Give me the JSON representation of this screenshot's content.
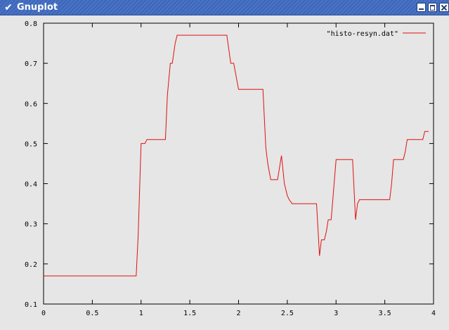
{
  "window": {
    "title": "Gnuplot",
    "menu_icon": "chevron-down-icon",
    "minimize_icon": "minimize-icon",
    "maximize_icon": "maximize-icon",
    "close_icon": "close-icon",
    "titlebar_color": "#4a74c6"
  },
  "chart_data": {
    "type": "line",
    "title": "",
    "xlabel": "",
    "ylabel": "",
    "xlim": [
      0,
      4
    ],
    "ylim": [
      0.1,
      0.8
    ],
    "x_ticks": [
      0,
      0.5,
      1,
      1.5,
      2,
      2.5,
      3,
      3.5,
      4
    ],
    "x_tick_labels": [
      "0",
      "0.5",
      "1",
      "1.5",
      "2",
      "2.5",
      "3",
      "3.5",
      "4"
    ],
    "y_ticks": [
      0.1,
      0.2,
      0.3,
      0.4,
      0.5,
      0.6,
      0.7,
      0.8
    ],
    "y_tick_labels": [
      "0.1",
      "0.2",
      "0.3",
      "0.4",
      "0.5",
      "0.6",
      "0.7",
      "0.8"
    ],
    "grid": false,
    "legend_position": "top-right",
    "background": "#e6e6e6",
    "series": [
      {
        "name": "\"histo-resyn.dat\"",
        "color": "#e01010",
        "x": [
          0,
          0.95,
          0.97,
          1.0,
          1.04,
          1.06,
          1.25,
          1.27,
          1.3,
          1.32,
          1.35,
          1.37,
          1.88,
          1.92,
          1.95,
          2.0,
          2.25,
          2.28,
          2.3,
          2.33,
          2.4,
          2.42,
          2.44,
          2.47,
          2.5,
          2.52,
          2.55,
          2.8,
          2.83,
          2.85,
          2.88,
          2.9,
          2.92,
          2.95,
          2.97,
          3.0,
          3.17,
          3.2,
          3.22,
          3.24,
          3.27,
          3.55,
          3.57,
          3.59,
          3.69,
          3.71,
          3.73,
          3.86,
          3.89,
          3.91,
          3.95
        ],
        "y": [
          0.17,
          0.17,
          0.27,
          0.5,
          0.5,
          0.51,
          0.51,
          0.62,
          0.7,
          0.7,
          0.75,
          0.77,
          0.77,
          0.7,
          0.7,
          0.635,
          0.635,
          0.49,
          0.45,
          0.41,
          0.41,
          0.44,
          0.47,
          0.4,
          0.37,
          0.36,
          0.35,
          0.35,
          0.22,
          0.26,
          0.26,
          0.28,
          0.31,
          0.31,
          0.37,
          0.46,
          0.46,
          0.31,
          0.35,
          0.36,
          0.36,
          0.36,
          0.4,
          0.46,
          0.46,
          0.48,
          0.51,
          0.51,
          0.51,
          0.53,
          0.53
        ]
      }
    ]
  }
}
